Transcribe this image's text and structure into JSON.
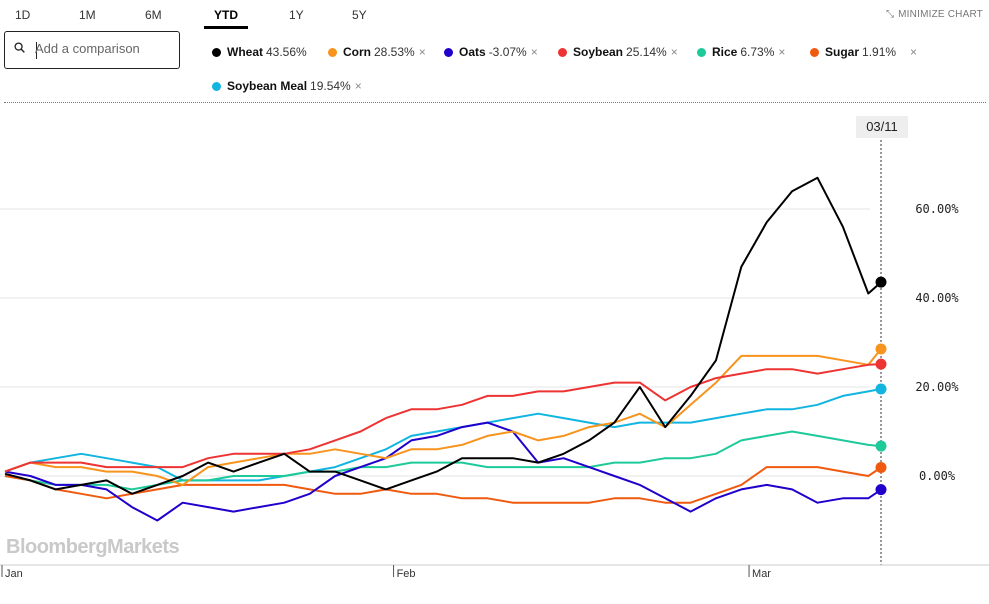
{
  "tabs": [
    {
      "label": "1D"
    },
    {
      "label": "1M"
    },
    {
      "label": "6M"
    },
    {
      "label": "YTD"
    },
    {
      "label": "1Y"
    },
    {
      "label": "5Y"
    }
  ],
  "active_tab": "YTD",
  "minimize_label": "MINIMIZE CHART",
  "search": {
    "placeholder": "Add a comparison",
    "value": ""
  },
  "watermark": "BloombergMarkets",
  "hover_date": "03/11",
  "legend": [
    {
      "name": "Wheat",
      "pct": "43.56%",
      "color": "#000000",
      "removable": false
    },
    {
      "name": "Corn",
      "pct": "28.53%",
      "color": "#f7941d",
      "removable": true
    },
    {
      "name": "Oats",
      "pct": "-3.07%",
      "color": "#2200cc",
      "removable": true
    },
    {
      "name": "Soybean",
      "pct": "25.14%",
      "color": "#ee3333",
      "removable": true
    },
    {
      "name": "Rice",
      "pct": "6.73%",
      "color": "#1ec99a",
      "removable": true
    },
    {
      "name": "Sugar",
      "pct": "1.91%",
      "color": "#f05a0f",
      "removable": true
    },
    {
      "name": "Soybean Meal",
      "pct": "19.54%",
      "color": "#11b5e0",
      "removable": true
    }
  ],
  "chart_data": {
    "type": "line",
    "x": [
      "2022-01-01",
      "2022-01-03",
      "2022-01-05",
      "2022-01-07",
      "2022-01-09",
      "2022-01-11",
      "2022-01-13",
      "2022-01-15",
      "2022-01-17",
      "2022-01-19",
      "2022-01-21",
      "2022-01-23",
      "2022-01-25",
      "2022-01-27",
      "2022-01-29",
      "2022-01-31",
      "2022-02-02",
      "2022-02-04",
      "2022-02-06",
      "2022-02-08",
      "2022-02-10",
      "2022-02-12",
      "2022-02-14",
      "2022-02-16",
      "2022-02-18",
      "2022-02-20",
      "2022-02-22",
      "2022-02-24",
      "2022-02-26",
      "2022-02-28",
      "2022-03-02",
      "2022-03-04",
      "2022-03-06",
      "2022-03-08",
      "2022-03-10",
      "2022-03-11"
    ],
    "x_tick_labels": [
      {
        "date": "2022-01-01",
        "label": "Jan"
      },
      {
        "date": "2022-02-01",
        "label": "Feb"
      },
      {
        "date": "2022-03-01",
        "label": "Mar"
      }
    ],
    "y_ticks": [
      0,
      20,
      40,
      60
    ],
    "y_tick_labels": [
      "0.00%",
      "20.00%",
      "40.00%",
      "60.00%"
    ],
    "ylim": [
      -20,
      75
    ],
    "grid": true,
    "ylabel": "",
    "xlabel": "",
    "series": [
      {
        "name": "Wheat",
        "color": "#000000",
        "values": [
          0.5,
          -1,
          -3,
          -2,
          -1,
          -4,
          -2,
          0,
          3,
          1,
          3,
          5,
          1,
          1,
          -1,
          -3,
          -1,
          1,
          4,
          4,
          4,
          3,
          5,
          8,
          12,
          20,
          11,
          18,
          26,
          47,
          57,
          64,
          67,
          56,
          41,
          43.56
        ]
      },
      {
        "name": "Corn",
        "color": "#f7941d",
        "values": [
          1,
          3,
          2,
          2,
          1,
          1,
          0,
          -2,
          2,
          3,
          4,
          5,
          5,
          6,
          5,
          4,
          6,
          6,
          7,
          9,
          10,
          8,
          9,
          11,
          12,
          14,
          11,
          16,
          21,
          27,
          27,
          27,
          27,
          26,
          25,
          28.53
        ]
      },
      {
        "name": "Oats",
        "color": "#2200cc",
        "values": [
          1,
          0,
          -2,
          -2,
          -3,
          -7,
          -10,
          -6,
          -7,
          -8,
          -7,
          -6,
          -4,
          0,
          2,
          4,
          8,
          9,
          11,
          12,
          10,
          3,
          4,
          2,
          0,
          -2,
          -5,
          -8,
          -5,
          -3,
          -2,
          -3,
          -6,
          -5,
          -5,
          -3.07
        ]
      },
      {
        "name": "Soybean",
        "color": "#ee3333",
        "values": [
          1,
          3,
          3,
          3,
          2,
          2,
          2,
          2,
          4,
          5,
          5,
          5,
          6,
          8,
          10,
          13,
          15,
          15,
          16,
          18,
          18,
          19,
          19,
          20,
          21,
          21,
          17,
          20,
          22,
          23,
          24,
          24,
          23,
          24,
          25,
          25.14
        ]
      },
      {
        "name": "Rice",
        "color": "#1ec99a",
        "values": [
          0,
          -1,
          -2,
          -2,
          -2,
          -3,
          -2,
          -1,
          -1,
          0,
          0,
          0,
          1,
          1,
          2,
          2,
          3,
          3,
          3,
          2,
          2,
          2,
          2,
          2,
          3,
          3,
          4,
          4,
          5,
          8,
          9,
          10,
          9,
          8,
          7,
          6.73
        ]
      },
      {
        "name": "Sugar",
        "color": "#f05a0f",
        "values": [
          0,
          -1,
          -3,
          -4,
          -5,
          -4,
          -3,
          -2,
          -2,
          -2,
          -2,
          -2,
          -3,
          -4,
          -4,
          -3,
          -4,
          -4,
          -5,
          -5,
          -6,
          -6,
          -6,
          -6,
          -5,
          -5,
          -6,
          -6,
          -4,
          -2,
          2,
          2,
          2,
          1,
          0,
          1.91
        ]
      },
      {
        "name": "Soybean Meal",
        "color": "#11b5e0",
        "values": [
          1,
          3,
          4,
          5,
          4,
          3,
          2,
          -1,
          -1,
          -1,
          -1,
          0,
          1,
          2,
          4,
          6,
          9,
          10,
          11,
          12,
          13,
          14,
          13,
          12,
          11,
          12,
          12,
          12,
          13,
          14,
          15,
          15,
          16,
          18,
          19,
          19.54
        ]
      }
    ]
  }
}
